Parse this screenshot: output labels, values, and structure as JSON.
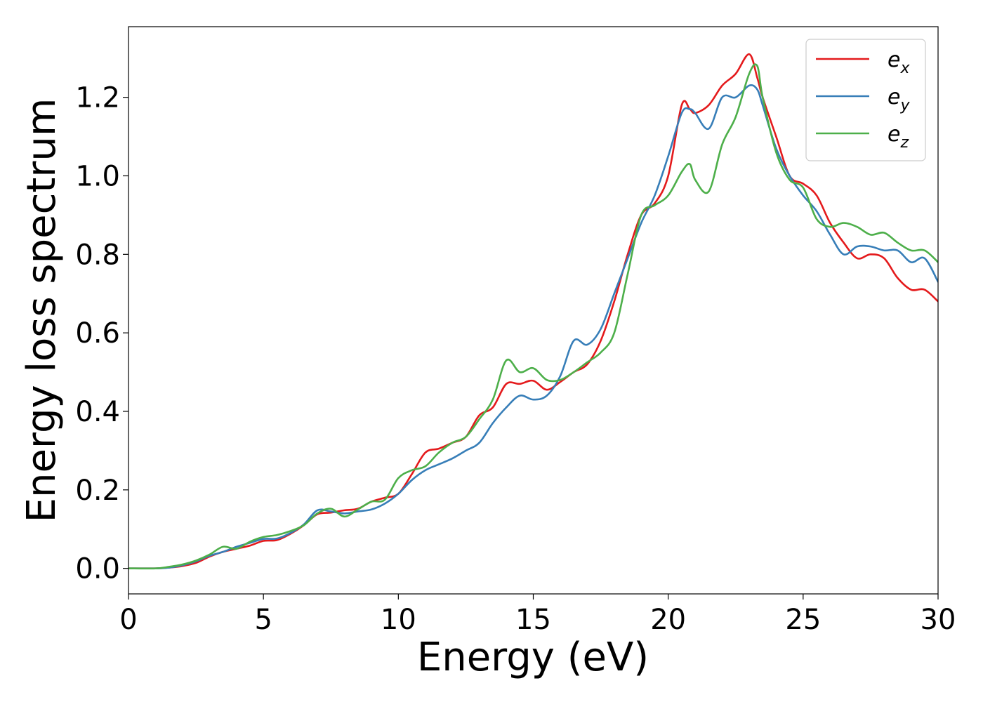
{
  "chart_data": {
    "type": "line",
    "title": "",
    "xlabel": "Energy (eV)",
    "ylabel": "Energy loss spectrum",
    "xlim": [
      0,
      30
    ],
    "ylim": [
      -0.065,
      1.38
    ],
    "xticks": [
      0,
      5,
      10,
      15,
      20,
      25,
      30
    ],
    "xtick_labels": [
      "0",
      "5",
      "10",
      "15",
      "20",
      "25",
      "30"
    ],
    "yticks": [
      0.0,
      0.2,
      0.4,
      0.6,
      0.8,
      1.0,
      1.2
    ],
    "ytick_labels": [
      "0.0",
      "0.2",
      "0.4",
      "0.6",
      "0.8",
      "1.0",
      "1.2"
    ],
    "grid": false,
    "legend_position": "top-right",
    "series": [
      {
        "name": "e_x",
        "legend_base": "e",
        "legend_sub": "x",
        "color": "#e41a1c",
        "x": [
          0,
          1,
          1.5,
          2,
          2.5,
          3,
          3.5,
          4,
          4.5,
          5,
          5.5,
          6,
          6.5,
          7,
          7.5,
          8,
          8.5,
          9,
          9.5,
          10,
          10.5,
          11,
          11.5,
          12,
          12.5,
          13,
          13.5,
          14,
          14.5,
          15,
          15.5,
          16,
          16.5,
          17,
          17.5,
          18,
          18.5,
          19,
          19.5,
          20,
          20.5,
          20.8,
          21,
          21.5,
          22,
          22.5,
          23,
          23.3,
          23.5,
          24,
          24.5,
          25,
          25.5,
          26,
          26.5,
          27,
          27.5,
          28,
          28.5,
          29,
          29.5,
          30
        ],
        "y": [
          0,
          0,
          0.002,
          0.006,
          0.014,
          0.03,
          0.042,
          0.05,
          0.058,
          0.07,
          0.072,
          0.088,
          0.11,
          0.138,
          0.142,
          0.148,
          0.152,
          0.17,
          0.18,
          0.19,
          0.24,
          0.295,
          0.305,
          0.32,
          0.335,
          0.39,
          0.41,
          0.47,
          0.47,
          0.478,
          0.455,
          0.475,
          0.5,
          0.52,
          0.58,
          0.68,
          0.8,
          0.9,
          0.93,
          1.0,
          1.18,
          1.17,
          1.16,
          1.18,
          1.23,
          1.26,
          1.31,
          1.25,
          1.2,
          1.1,
          1.0,
          0.98,
          0.95,
          0.88,
          0.83,
          0.79,
          0.8,
          0.79,
          0.74,
          0.71,
          0.71,
          0.68
        ]
      },
      {
        "name": "e_y",
        "legend_base": "e",
        "legend_sub": "y",
        "color": "#377eb8",
        "x": [
          0,
          1,
          1.5,
          2,
          2.5,
          3,
          3.5,
          4,
          4.5,
          5,
          5.5,
          6,
          6.5,
          7,
          7.5,
          8,
          8.5,
          9,
          9.5,
          10,
          10.5,
          11,
          11.5,
          12,
          12.5,
          13,
          13.5,
          14,
          14.5,
          15,
          15.5,
          16,
          16.5,
          17,
          17.5,
          18,
          18.5,
          19,
          19.5,
          20,
          20.5,
          20.8,
          21,
          21.5,
          22,
          22.5,
          23,
          23.3,
          23.5,
          24,
          24.5,
          25,
          25.5,
          26,
          26.5,
          27,
          27.5,
          28,
          28.5,
          29,
          29.5,
          30
        ],
        "y": [
          0,
          0,
          0.002,
          0.008,
          0.018,
          0.032,
          0.042,
          0.055,
          0.065,
          0.075,
          0.076,
          0.09,
          0.112,
          0.148,
          0.145,
          0.14,
          0.145,
          0.15,
          0.165,
          0.19,
          0.225,
          0.25,
          0.265,
          0.28,
          0.3,
          0.32,
          0.37,
          0.41,
          0.44,
          0.43,
          0.44,
          0.49,
          0.58,
          0.57,
          0.61,
          0.7,
          0.79,
          0.88,
          0.95,
          1.05,
          1.16,
          1.17,
          1.16,
          1.12,
          1.2,
          1.2,
          1.23,
          1.22,
          1.18,
          1.07,
          1.0,
          0.95,
          0.91,
          0.85,
          0.8,
          0.82,
          0.82,
          0.81,
          0.81,
          0.78,
          0.79,
          0.73
        ]
      },
      {
        "name": "e_z",
        "legend_base": "e",
        "legend_sub": "z",
        "color": "#4daf4a",
        "x": [
          0,
          1,
          1.5,
          2,
          2.5,
          3,
          3.5,
          4,
          4.5,
          5,
          5.5,
          6,
          6.5,
          7,
          7.5,
          8,
          8.5,
          9,
          9.5,
          10,
          10.5,
          11,
          11.5,
          12,
          12.5,
          13,
          13.5,
          14,
          14.5,
          15,
          15.5,
          16,
          16.5,
          17,
          17.5,
          18,
          18.5,
          19,
          19.5,
          20,
          20.5,
          20.8,
          21,
          21.5,
          22,
          22.5,
          23,
          23.3,
          23.5,
          24,
          24.5,
          25,
          25.5,
          26,
          26.5,
          27,
          27.5,
          28,
          28.5,
          29,
          29.5,
          30
        ],
        "y": [
          0,
          0,
          0.004,
          0.01,
          0.02,
          0.035,
          0.055,
          0.05,
          0.068,
          0.08,
          0.085,
          0.095,
          0.11,
          0.14,
          0.152,
          0.132,
          0.15,
          0.17,
          0.175,
          0.23,
          0.25,
          0.26,
          0.295,
          0.32,
          0.335,
          0.38,
          0.43,
          0.53,
          0.5,
          0.51,
          0.48,
          0.48,
          0.5,
          0.525,
          0.55,
          0.6,
          0.75,
          0.9,
          0.925,
          0.95,
          1.01,
          1.03,
          0.99,
          0.96,
          1.08,
          1.15,
          1.26,
          1.28,
          1.2,
          1.06,
          0.99,
          0.97,
          0.89,
          0.87,
          0.88,
          0.87,
          0.85,
          0.855,
          0.83,
          0.81,
          0.81,
          0.78
        ]
      }
    ]
  }
}
